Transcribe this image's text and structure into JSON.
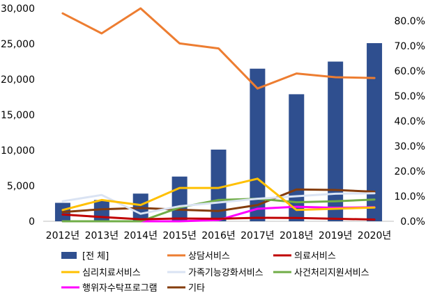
{
  "chart_data": {
    "type": "bar",
    "categories": [
      "2012년",
      "2013년",
      "2014년",
      "2015년",
      "2016년",
      "2017년",
      "2018년",
      "2019년",
      "2020년"
    ],
    "y_left": {
      "min": 0,
      "max": 30000,
      "ticks": [
        "0",
        "5,000",
        "10,000",
        "15,000",
        "20,000",
        "25,000",
        "30,000"
      ],
      "tick_values": [
        0,
        5000,
        10000,
        15000,
        20000,
        25000,
        30000
      ]
    },
    "y_right": {
      "min": 0,
      "max": 0.85,
      "ticks": [
        "0.0%",
        "10.0%",
        "20.0%",
        "30.0%",
        "40.0%",
        "50.0%",
        "60.0%",
        "70.0%",
        "80.0%"
      ],
      "tick_values": [
        0,
        0.1,
        0.2,
        0.3,
        0.4,
        0.5,
        0.6,
        0.7,
        0.8
      ]
    },
    "bar_series": {
      "name": "[전 체]",
      "axis": "left",
      "color": "#2f4f8f",
      "values": [
        2600,
        3000,
        3900,
        6300,
        10100,
        21500,
        17900,
        22500,
        25100
      ]
    },
    "line_series": [
      {
        "name": "상담서비스",
        "axis": "right",
        "color": "#ed7d31",
        "values": [
          0.83,
          0.75,
          0.85,
          0.71,
          0.69,
          0.53,
          0.59,
          0.575,
          0.572
        ]
      },
      {
        "name": "의료서비스",
        "axis": "right",
        "color": "#c00000",
        "values": [
          0.027,
          0.017,
          0.008,
          0.011,
          0.01,
          0.014,
          0.013,
          0.01,
          0.007
        ]
      },
      {
        "name": "심리치료서비스",
        "axis": "right",
        "color": "#ffc000",
        "values": [
          0.045,
          0.085,
          0.065,
          0.133,
          0.133,
          0.17,
          0.045,
          0.05,
          0.055
        ]
      },
      {
        "name": "가족기능강화서비스",
        "axis": "right",
        "color": "#dae3f3",
        "values": [
          0.08,
          0.105,
          0.03,
          0.06,
          0.075,
          0.09,
          0.1,
          0.11,
          0.112
        ]
      },
      {
        "name": "사건처리지원서비스",
        "axis": "right",
        "color": "#70ad47",
        "values": [
          0.0,
          0.0,
          0.0,
          0.055,
          0.085,
          0.09,
          0.076,
          0.08,
          0.087
        ]
      },
      {
        "name": "행위자수탁프로그램",
        "axis": "right",
        "color": "#ff00ff",
        "values": [
          0.0,
          0.0,
          0.0,
          0.0,
          0.005,
          0.05,
          0.058,
          0.054,
          0.056
        ]
      },
      {
        "name": "기타",
        "axis": "right",
        "color": "#843c0c",
        "values": [
          0.037,
          0.048,
          0.053,
          0.046,
          0.041,
          0.065,
          0.127,
          0.125,
          0.118
        ]
      }
    ],
    "legend": {
      "position": "bottom",
      "rows": [
        [
          "[전 체]",
          "상담서비스",
          "의료서비스"
        ],
        [
          "심리치료서비스",
          "가족기능강화서비스",
          "사건처리지원서비스"
        ],
        [
          "행위자수탁프로그램",
          "기타"
        ]
      ]
    },
    "grid": false
  }
}
